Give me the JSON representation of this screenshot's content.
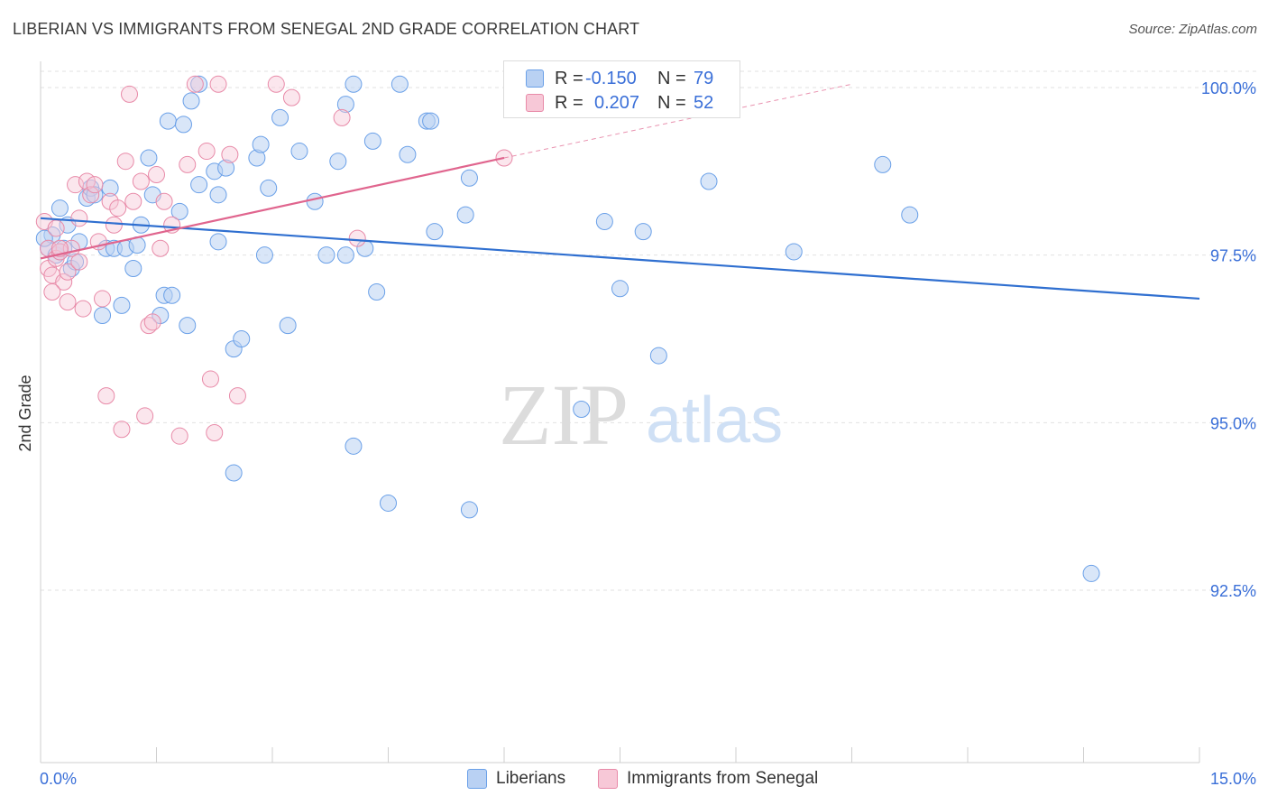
{
  "title": "LIBERIAN VS IMMIGRANTS FROM SENEGAL 2ND GRADE CORRELATION CHART",
  "source": "Source: ZipAtlas.com",
  "watermark": {
    "zip": "ZIP",
    "atlas": "atlas"
  },
  "legend": {
    "series1": {
      "r_label": "R =",
      "r_value": "-0.150",
      "n_label": "N =",
      "n_value": "79"
    },
    "series2": {
      "r_label": "R =",
      "r_value": "0.207",
      "n_label": "N =",
      "n_value": "52"
    }
  },
  "colors": {
    "blue": "#6aa0e8",
    "blue_fill": "#b9d1f3",
    "blue_line": "#2f6fd0",
    "pink": "#e88aa8",
    "pink_fill": "#f7c8d7",
    "pink_line": "#e0658e",
    "axis_text": "#3a6fd8"
  },
  "chart_data": {
    "type": "scatter",
    "title": "LIBERIAN VS IMMIGRANTS FROM SENEGAL 2ND GRADE CORRELATION CHART",
    "xlabel": "",
    "ylabel": "2nd Grade",
    "xlim": [
      0,
      15
    ],
    "ylim": [
      90.3,
      100.3
    ],
    "x_tick_labels": [
      "0.0%",
      "15.0%"
    ],
    "y_ticks": [
      100.0,
      97.5,
      95.0,
      92.5
    ],
    "y_tick_labels": [
      "100.0%",
      "97.5%",
      "95.0%",
      "92.5%"
    ],
    "grid": "horizontal dashed",
    "legend_position": "top-center",
    "series": [
      {
        "name": "Liberians",
        "color": "#6aa0e8",
        "trend": {
          "x": [
            0,
            15
          ],
          "y": [
            98.05,
            96.85
          ]
        },
        "points": [
          [
            0.1,
            97.6
          ],
          [
            0.15,
            97.8
          ],
          [
            0.2,
            97.5
          ],
          [
            0.25,
            98.2
          ],
          [
            0.3,
            97.6
          ],
          [
            0.35,
            97.95
          ],
          [
            0.4,
            97.3
          ],
          [
            0.45,
            97.4
          ],
          [
            0.5,
            97.7
          ],
          [
            0.6,
            98.35
          ],
          [
            0.65,
            98.5
          ],
          [
            0.7,
            98.4
          ],
          [
            0.8,
            96.6
          ],
          [
            0.85,
            97.6
          ],
          [
            0.9,
            98.5
          ],
          [
            0.95,
            97.6
          ],
          [
            1.05,
            96.75
          ],
          [
            1.1,
            97.6
          ],
          [
            1.2,
            97.3
          ],
          [
            1.25,
            97.65
          ],
          [
            1.3,
            97.95
          ],
          [
            1.4,
            98.95
          ],
          [
            1.45,
            98.4
          ],
          [
            1.55,
            96.6
          ],
          [
            1.6,
            96.9
          ],
          [
            1.65,
            99.5
          ],
          [
            1.7,
            96.9
          ],
          [
            1.8,
            98.15
          ],
          [
            1.85,
            99.45
          ],
          [
            1.9,
            96.45
          ],
          [
            1.95,
            99.8
          ],
          [
            2.05,
            100.05
          ],
          [
            2.05,
            98.55
          ],
          [
            2.25,
            98.75
          ],
          [
            2.3,
            97.7
          ],
          [
            2.3,
            98.4
          ],
          [
            2.4,
            98.8
          ],
          [
            2.5,
            96.1
          ],
          [
            2.5,
            94.25
          ],
          [
            2.6,
            96.25
          ],
          [
            2.8,
            98.95
          ],
          [
            2.85,
            99.15
          ],
          [
            2.9,
            97.5
          ],
          [
            2.95,
            98.5
          ],
          [
            3.1,
            99.55
          ],
          [
            3.2,
            96.45
          ],
          [
            3.35,
            99.05
          ],
          [
            3.55,
            98.3
          ],
          [
            3.7,
            97.5
          ],
          [
            3.85,
            98.9
          ],
          [
            3.95,
            97.5
          ],
          [
            3.95,
            99.75
          ],
          [
            4.05,
            100.05
          ],
          [
            4.05,
            94.65
          ],
          [
            4.2,
            97.6
          ],
          [
            4.3,
            99.2
          ],
          [
            4.35,
            96.95
          ],
          [
            4.5,
            93.8
          ],
          [
            4.65,
            100.05
          ],
          [
            4.75,
            99.0
          ],
          [
            5.0,
            99.5
          ],
          [
            5.05,
            99.5
          ],
          [
            5.1,
            97.85
          ],
          [
            5.5,
            98.1
          ],
          [
            5.55,
            98.65
          ],
          [
            5.55,
            93.7
          ],
          [
            6.1,
            100.05
          ],
          [
            7.0,
            95.2
          ],
          [
            7.3,
            98.0
          ],
          [
            7.5,
            97.0
          ],
          [
            7.8,
            97.85
          ],
          [
            8.0,
            96.0
          ],
          [
            8.65,
            98.6
          ],
          [
            9.75,
            97.55
          ],
          [
            10.9,
            98.85
          ],
          [
            11.25,
            98.1
          ],
          [
            13.6,
            92.75
          ],
          [
            0.05,
            97.75
          ],
          [
            0.25,
            97.55
          ]
        ]
      },
      {
        "name": "Immigrants from Senegal",
        "color": "#e88aa8",
        "trend": {
          "x": [
            0,
            6
          ],
          "y": [
            97.45,
            98.95
          ]
        },
        "trend_extension": {
          "x": [
            6,
            10.5
          ],
          "y": [
            98.95,
            100.05
          ]
        },
        "points": [
          [
            0.05,
            98.0
          ],
          [
            0.1,
            97.6
          ],
          [
            0.1,
            97.3
          ],
          [
            0.15,
            97.2
          ],
          [
            0.2,
            97.9
          ],
          [
            0.2,
            97.45
          ],
          [
            0.25,
            97.55
          ],
          [
            0.3,
            97.1
          ],
          [
            0.35,
            97.25
          ],
          [
            0.35,
            96.8
          ],
          [
            0.4,
            97.6
          ],
          [
            0.45,
            98.55
          ],
          [
            0.5,
            98.05
          ],
          [
            0.55,
            96.7
          ],
          [
            0.6,
            98.6
          ],
          [
            0.65,
            98.4
          ],
          [
            0.7,
            98.55
          ],
          [
            0.75,
            97.7
          ],
          [
            0.8,
            96.85
          ],
          [
            0.85,
            95.4
          ],
          [
            0.9,
            98.3
          ],
          [
            0.95,
            97.95
          ],
          [
            1.0,
            98.2
          ],
          [
            1.05,
            94.9
          ],
          [
            1.1,
            98.9
          ],
          [
            1.15,
            99.9
          ],
          [
            1.2,
            98.3
          ],
          [
            1.3,
            98.6
          ],
          [
            1.35,
            95.1
          ],
          [
            1.4,
            96.45
          ],
          [
            1.45,
            96.5
          ],
          [
            1.5,
            98.7
          ],
          [
            1.55,
            97.6
          ],
          [
            1.6,
            98.3
          ],
          [
            1.7,
            97.95
          ],
          [
            1.8,
            94.8
          ],
          [
            1.9,
            98.85
          ],
          [
            2.0,
            100.05
          ],
          [
            2.15,
            99.05
          ],
          [
            2.2,
            95.65
          ],
          [
            2.25,
            94.85
          ],
          [
            2.3,
            100.05
          ],
          [
            2.45,
            99.0
          ],
          [
            2.55,
            95.4
          ],
          [
            3.05,
            100.05
          ],
          [
            3.25,
            99.85
          ],
          [
            3.9,
            99.55
          ],
          [
            4.1,
            97.75
          ],
          [
            6.0,
            98.95
          ],
          [
            0.5,
            97.4
          ],
          [
            0.15,
            96.95
          ],
          [
            0.25,
            97.6
          ]
        ]
      }
    ]
  },
  "bottom_legend": {
    "item1": "Liberians",
    "item2": "Immigrants from Senegal"
  }
}
